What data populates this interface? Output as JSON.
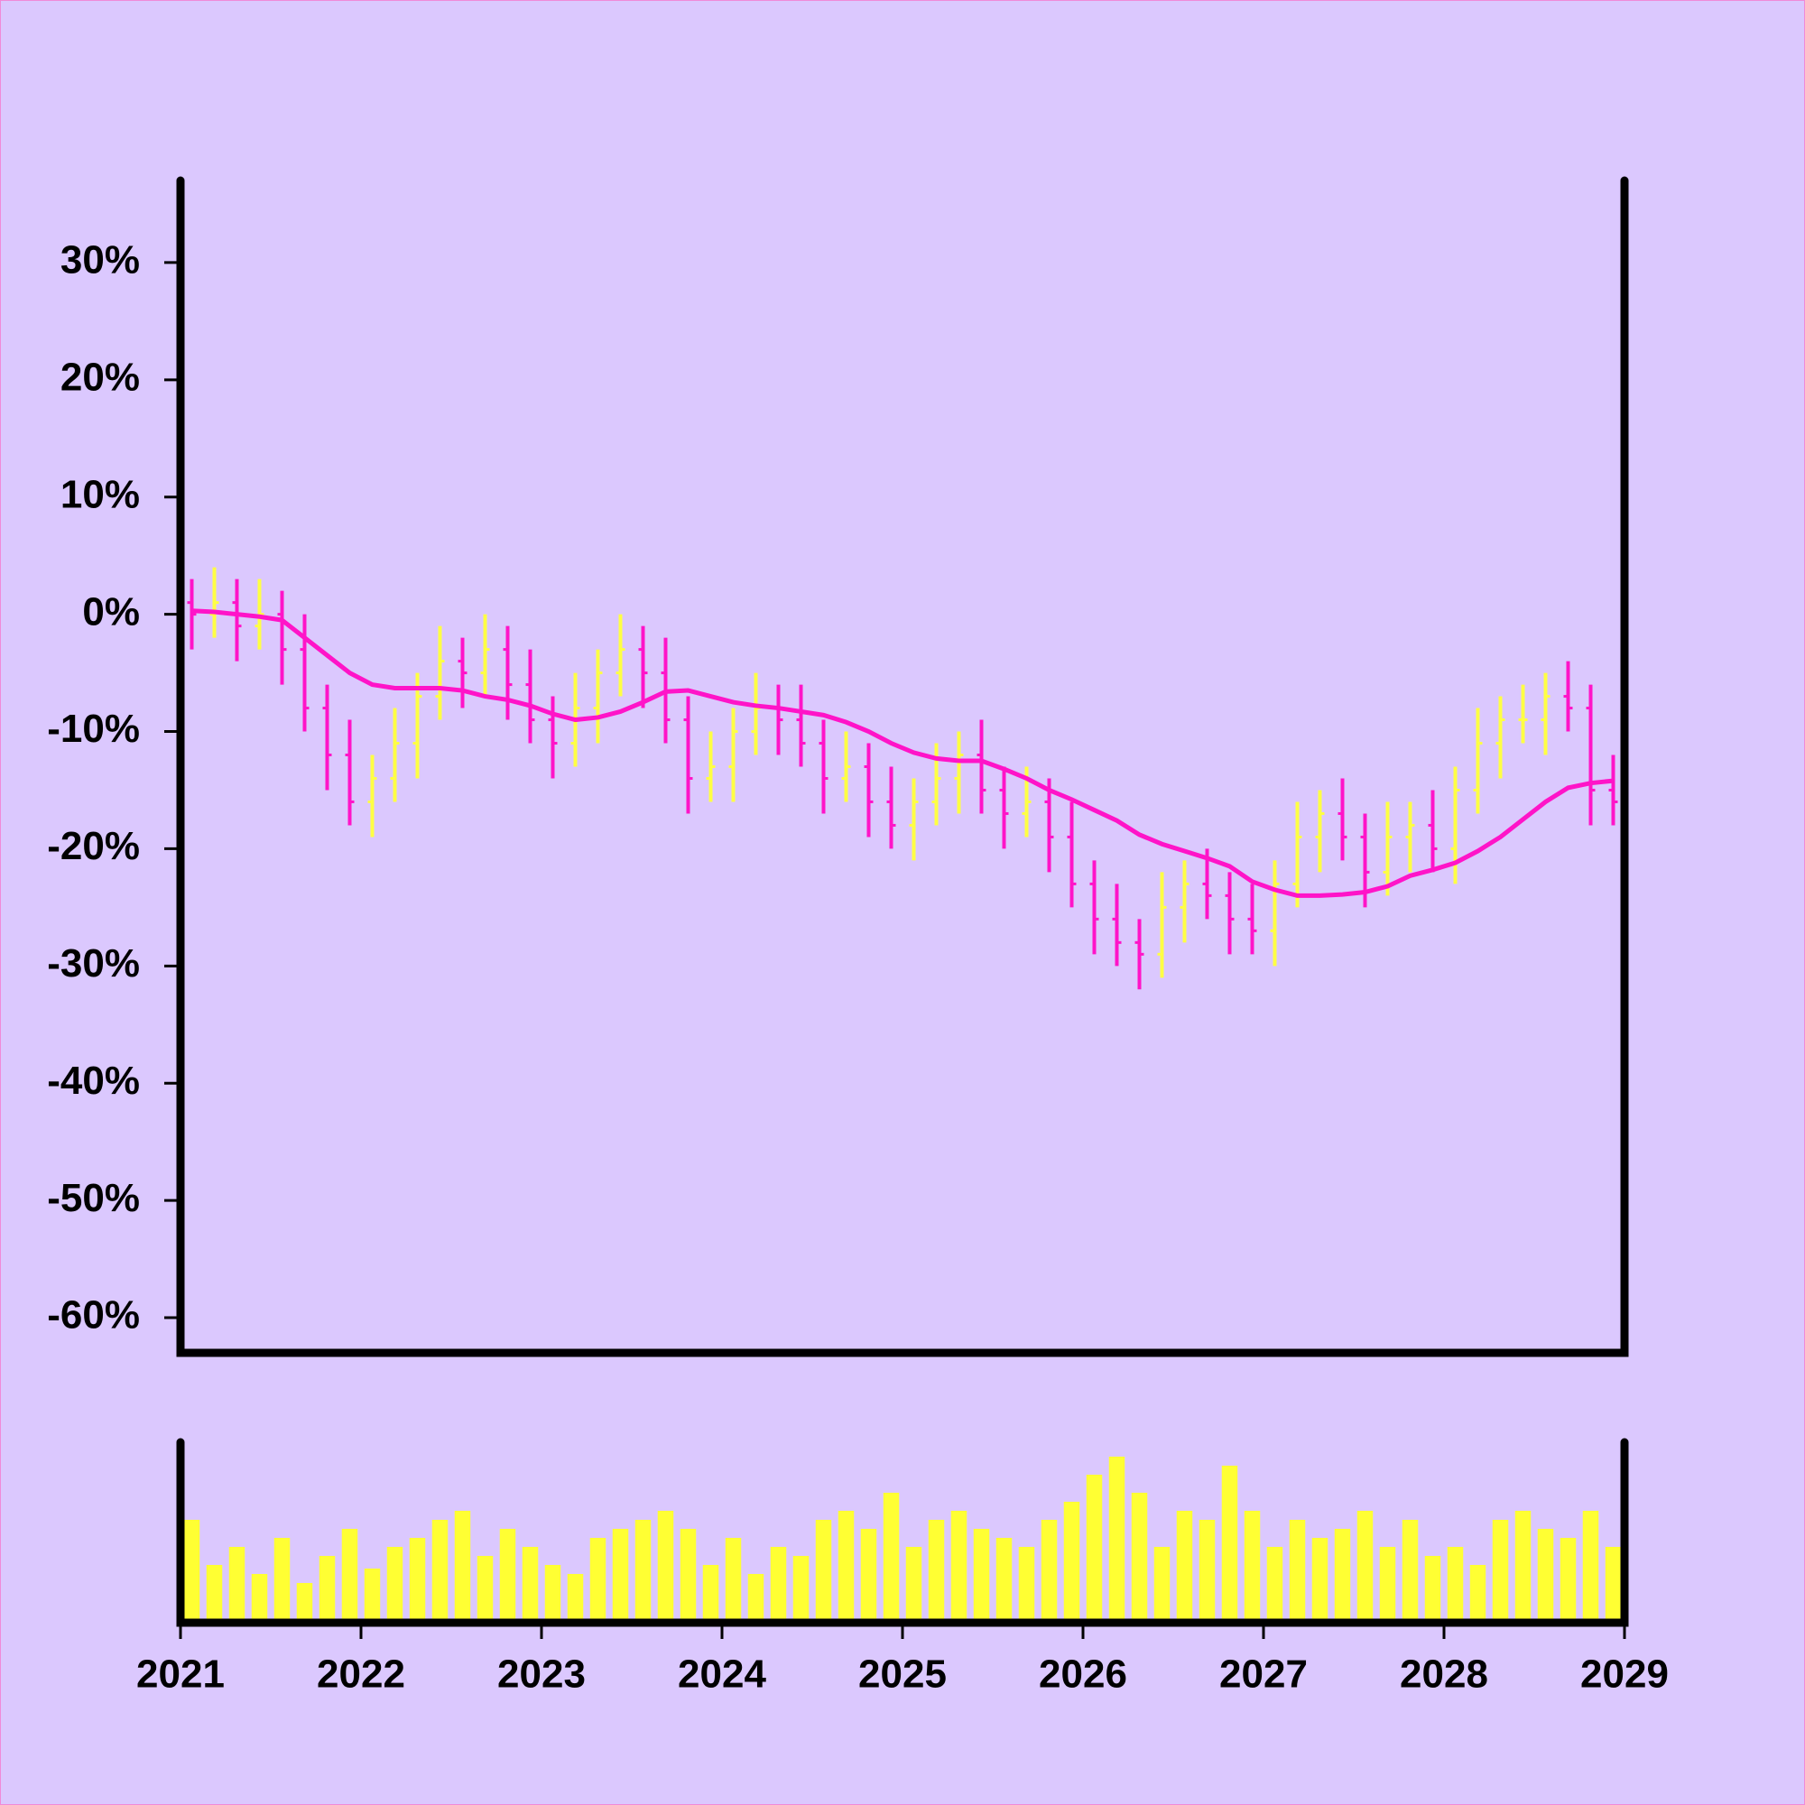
{
  "chart_data": {
    "type": "ohlc",
    "up_color": "#ffff44",
    "down_color": "#ff14c8",
    "volume_color": "#ffff33",
    "xlim": [
      2021,
      2029
    ],
    "xticks": [
      2021,
      2022,
      2023,
      2024,
      2025,
      2026,
      2027,
      2028,
      2029
    ],
    "ylim": [
      -63,
      37
    ],
    "yticks": [
      {
        "value": -60,
        "label": "-60%"
      },
      {
        "value": -50,
        "label": "-50%"
      },
      {
        "value": -40,
        "label": "-40%"
      },
      {
        "value": -30,
        "label": "-30%"
      },
      {
        "value": -20,
        "label": "-20%"
      },
      {
        "value": -10,
        "label": "-10%"
      },
      {
        "value": 0,
        "label": "0%"
      },
      {
        "value": 10,
        "label": "10%"
      },
      {
        "value": 20,
        "label": "20%"
      },
      {
        "value": 30,
        "label": "30%"
      }
    ],
    "x": [
      2021.0625,
      2021.1875,
      2021.3125,
      2021.4375,
      2021.5625,
      2021.6875,
      2021.8125,
      2021.9375,
      2022.0625,
      2022.1875,
      2022.3125,
      2022.4375,
      2022.5625,
      2022.6875,
      2022.8125,
      2022.9375,
      2023.0625,
      2023.1875,
      2023.3125,
      2023.4375,
      2023.5625,
      2023.6875,
      2023.8125,
      2023.9375,
      2024.0625,
      2024.1875,
      2024.3125,
      2024.4375,
      2024.5625,
      2024.6875,
      2024.8125,
      2024.9375,
      2025.0625,
      2025.1875,
      2025.3125,
      2025.4375,
      2025.5625,
      2025.6875,
      2025.8125,
      2025.9375,
      2026.0625,
      2026.1875,
      2026.3125,
      2026.4375,
      2026.5625,
      2026.6875,
      2026.8125,
      2026.9375,
      2027.0625,
      2027.1875,
      2027.3125,
      2027.4375,
      2027.5625,
      2027.6875,
      2027.8125,
      2027.9375,
      2028.0625,
      2028.1875,
      2028.3125,
      2028.4375,
      2028.5625,
      2028.6875,
      2028.8125,
      2028.9375
    ],
    "open": [
      1,
      0,
      1,
      -1,
      0,
      -3,
      -8,
      -12,
      -16,
      -14,
      -11,
      -7,
      -4,
      -5,
      -3,
      -6,
      -9,
      -11,
      -8,
      -5,
      -3,
      -5,
      -9,
      -14,
      -13,
      -10,
      -8,
      -9,
      -11,
      -14,
      -13,
      -16,
      -18,
      -16,
      -14,
      -12,
      -15,
      -17,
      -16,
      -19,
      -23,
      -26,
      -28,
      -29,
      -25,
      -23,
      -24,
      -26,
      -27,
      -23,
      -19,
      -17,
      -19,
      -22,
      -19,
      -18,
      -20,
      -15,
      -11,
      -9,
      -9,
      -7,
      -8,
      -15
    ],
    "high": [
      3,
      4,
      3,
      3,
      2,
      0,
      -6,
      -9,
      -12,
      -8,
      -5,
      -1,
      -2,
      0,
      -1,
      -3,
      -7,
      -5,
      -3,
      0,
      -1,
      -2,
      -7,
      -10,
      -8,
      -5,
      -6,
      -6,
      -9,
      -10,
      -11,
      -13,
      -14,
      -11,
      -10,
      -9,
      -13,
      -13,
      -14,
      -16,
      -21,
      -23,
      -26,
      -22,
      -21,
      -20,
      -22,
      -23,
      -21,
      -16,
      -15,
      -14,
      -17,
      -16,
      -16,
      -15,
      -13,
      -8,
      -7,
      -6,
      -5,
      -4,
      -6,
      -12
    ],
    "low": [
      -3,
      -2,
      -4,
      -3,
      -6,
      -10,
      -15,
      -18,
      -19,
      -16,
      -14,
      -9,
      -8,
      -7,
      -9,
      -11,
      -14,
      -13,
      -11,
      -7,
      -8,
      -11,
      -17,
      -16,
      -16,
      -12,
      -12,
      -13,
      -17,
      -16,
      -19,
      -20,
      -21,
      -18,
      -17,
      -17,
      -20,
      -19,
      -22,
      -25,
      -29,
      -30,
      -32,
      -31,
      -28,
      -26,
      -29,
      -29,
      -30,
      -25,
      -22,
      -21,
      -25,
      -24,
      -22,
      -22,
      -23,
      -17,
      -14,
      -11,
      -12,
      -10,
      -18,
      -18
    ],
    "close": [
      0,
      1,
      -1,
      0,
      -3,
      -8,
      -12,
      -16,
      -14,
      -11,
      -7,
      -4,
      -5,
      -3,
      -6,
      -9,
      -11,
      -8,
      -5,
      -3,
      -5,
      -9,
      -14,
      -13,
      -10,
      -8,
      -9,
      -11,
      -14,
      -13,
      -16,
      -18,
      -16,
      -14,
      -12,
      -15,
      -17,
      -16,
      -19,
      -23,
      -26,
      -28,
      -29,
      -25,
      -23,
      -24,
      -26,
      -27,
      -23,
      -19,
      -17,
      -19,
      -22,
      -19,
      -18,
      -20,
      -15,
      -11,
      -9,
      -9,
      -7,
      -8,
      -15,
      -16
    ],
    "volume": [
      55,
      30,
      40,
      25,
      45,
      20,
      35,
      50,
      28,
      40,
      45,
      55,
      60,
      35,
      50,
      40,
      30,
      25,
      45,
      50,
      55,
      60,
      50,
      30,
      45,
      25,
      40,
      35,
      55,
      60,
      50,
      70,
      40,
      55,
      60,
      50,
      45,
      40,
      55,
      65,
      80,
      90,
      70,
      40,
      60,
      55,
      85,
      60,
      40,
      55,
      45,
      50,
      60,
      40,
      55,
      35,
      40,
      30,
      55,
      60,
      50,
      45,
      60,
      40
    ],
    "ma": {
      "color": "#ff14c8",
      "values": [
        0.3,
        0.2,
        0,
        -0.2,
        -0.5,
        -2,
        -3.5,
        -5,
        -6,
        -6.3,
        -6.3,
        -6.3,
        -6.5,
        -7,
        -7.3,
        -7.8,
        -8.5,
        -9,
        -8.8,
        -8.3,
        -7.5,
        -6.6,
        -6.5,
        -7,
        -7.5,
        -7.8,
        -8,
        -8.3,
        -8.6,
        -9.2,
        -10,
        -11,
        -11.8,
        -12.3,
        -12.5,
        -12.5,
        -13.2,
        -14,
        -15,
        -15.8,
        -16.7,
        -17.6,
        -18.8,
        -19.6,
        -20.2,
        -20.8,
        -21.5,
        -22.8,
        -23.5,
        -24,
        -24,
        -23.9,
        -23.7,
        -23.2,
        -22.3,
        -21.8,
        -21.2,
        -20.2,
        -19,
        -17.5,
        -16,
        -14.8,
        -14.4,
        -14.2
      ]
    }
  }
}
